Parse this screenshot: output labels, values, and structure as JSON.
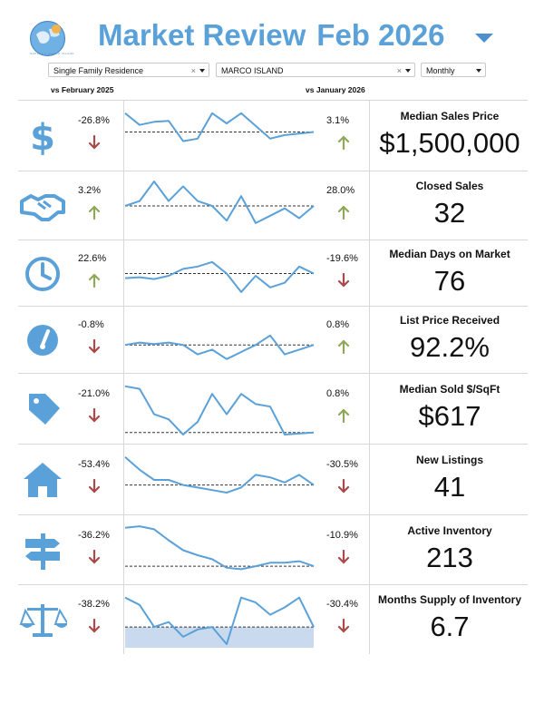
{
  "header": {
    "title": "Market Review",
    "period": "Feb 2026",
    "logo_text": "NAPLES & MARCO ISLAND"
  },
  "filters": {
    "property_type": "Single Family Residence",
    "area": "MARCO ISLAND",
    "frequency": "Monthly",
    "clear_glyph": "×"
  },
  "comparisons": {
    "left": "vs February 2025",
    "right": "vs January 2026"
  },
  "colors": {
    "accent": "#5aa1d9",
    "icon": "#5aa1d9",
    "up": "#8fa85a",
    "down": "#a84a4a",
    "line": "#5aa1d9",
    "band": "#c9d9ee"
  },
  "metrics": [
    {
      "label": "Median Sales Price",
      "value": "$1,500,000",
      "yoy": "-26.8%",
      "yoy_dir": "down",
      "mom": "3.1%",
      "mom_dir": "up",
      "icon": "dollar-icon",
      "spark": [
        0.95,
        0.72,
        0.78,
        0.8,
        0.4,
        0.45,
        0.95,
        0.75,
        0.95,
        0.7,
        0.45,
        0.52,
        0.55,
        0.58
      ]
    },
    {
      "label": "Closed Sales",
      "value": "32",
      "yoy": "3.2%",
      "yoy_dir": "up",
      "mom": "28.0%",
      "mom_dir": "up",
      "icon": "handshake-icon",
      "spark": [
        0.5,
        0.6,
        1.0,
        0.6,
        0.9,
        0.6,
        0.5,
        0.2,
        0.7,
        0.15,
        0.3,
        0.45,
        0.25,
        0.5
      ]
    },
    {
      "label": "Median Days on Market",
      "value": "76",
      "yoy": "22.6%",
      "yoy_dir": "up",
      "mom": "-19.6%",
      "mom_dir": "down",
      "icon": "clock-icon",
      "spark": [
        0.4,
        0.42,
        0.38,
        0.45,
        0.6,
        0.65,
        0.75,
        0.5,
        0.1,
        0.45,
        0.2,
        0.3,
        0.65,
        0.5
      ]
    },
    {
      "label": "List Price Received",
      "value": "92.2%",
      "yoy": "-0.8%",
      "yoy_dir": "down",
      "mom": "0.8%",
      "mom_dir": "up",
      "icon": "gauge-icon",
      "spark": [
        0.4,
        0.45,
        0.42,
        0.45,
        0.4,
        0.2,
        0.3,
        0.1,
        0.25,
        0.4,
        0.6,
        0.2,
        0.3,
        0.4
      ]
    },
    {
      "label": "Median Sold $/SqFt",
      "value": "$617",
      "yoy": "-21.0%",
      "yoy_dir": "down",
      "mom": "0.8%",
      "mom_dir": "up",
      "icon": "price-tag-icon",
      "spark": [
        0.95,
        0.9,
        0.4,
        0.3,
        0.0,
        0.25,
        0.8,
        0.4,
        0.8,
        0.6,
        0.55,
        0.0,
        0.02,
        0.04
      ]
    },
    {
      "label": "New Listings",
      "value": "41",
      "yoy": "-53.4%",
      "yoy_dir": "down",
      "mom": "-30.5%",
      "mom_dir": "down",
      "icon": "house-icon",
      "spark": [
        0.95,
        0.7,
        0.5,
        0.5,
        0.4,
        0.35,
        0.3,
        0.25,
        0.35,
        0.6,
        0.55,
        0.45,
        0.6,
        0.4
      ]
    },
    {
      "label": "Active Inventory",
      "value": "213",
      "yoy": "-36.2%",
      "yoy_dir": "down",
      "mom": "-10.9%",
      "mom_dir": "down",
      "icon": "signpost-icon",
      "spark": [
        0.95,
        0.98,
        0.92,
        0.7,
        0.5,
        0.4,
        0.32,
        0.15,
        0.12,
        0.18,
        0.25,
        0.25,
        0.28,
        0.18
      ]
    },
    {
      "label": "Months Supply of Inventory",
      "value": "6.7",
      "yoy": "-38.2%",
      "yoy_dir": "down",
      "mom": "-30.4%",
      "mom_dir": "down",
      "icon": "scale-icon",
      "spark": [
        0.95,
        0.8,
        0.35,
        0.45,
        0.15,
        0.3,
        0.35,
        0.0,
        0.95,
        0.85,
        0.6,
        0.75,
        0.95,
        0.35
      ]
    }
  ]
}
